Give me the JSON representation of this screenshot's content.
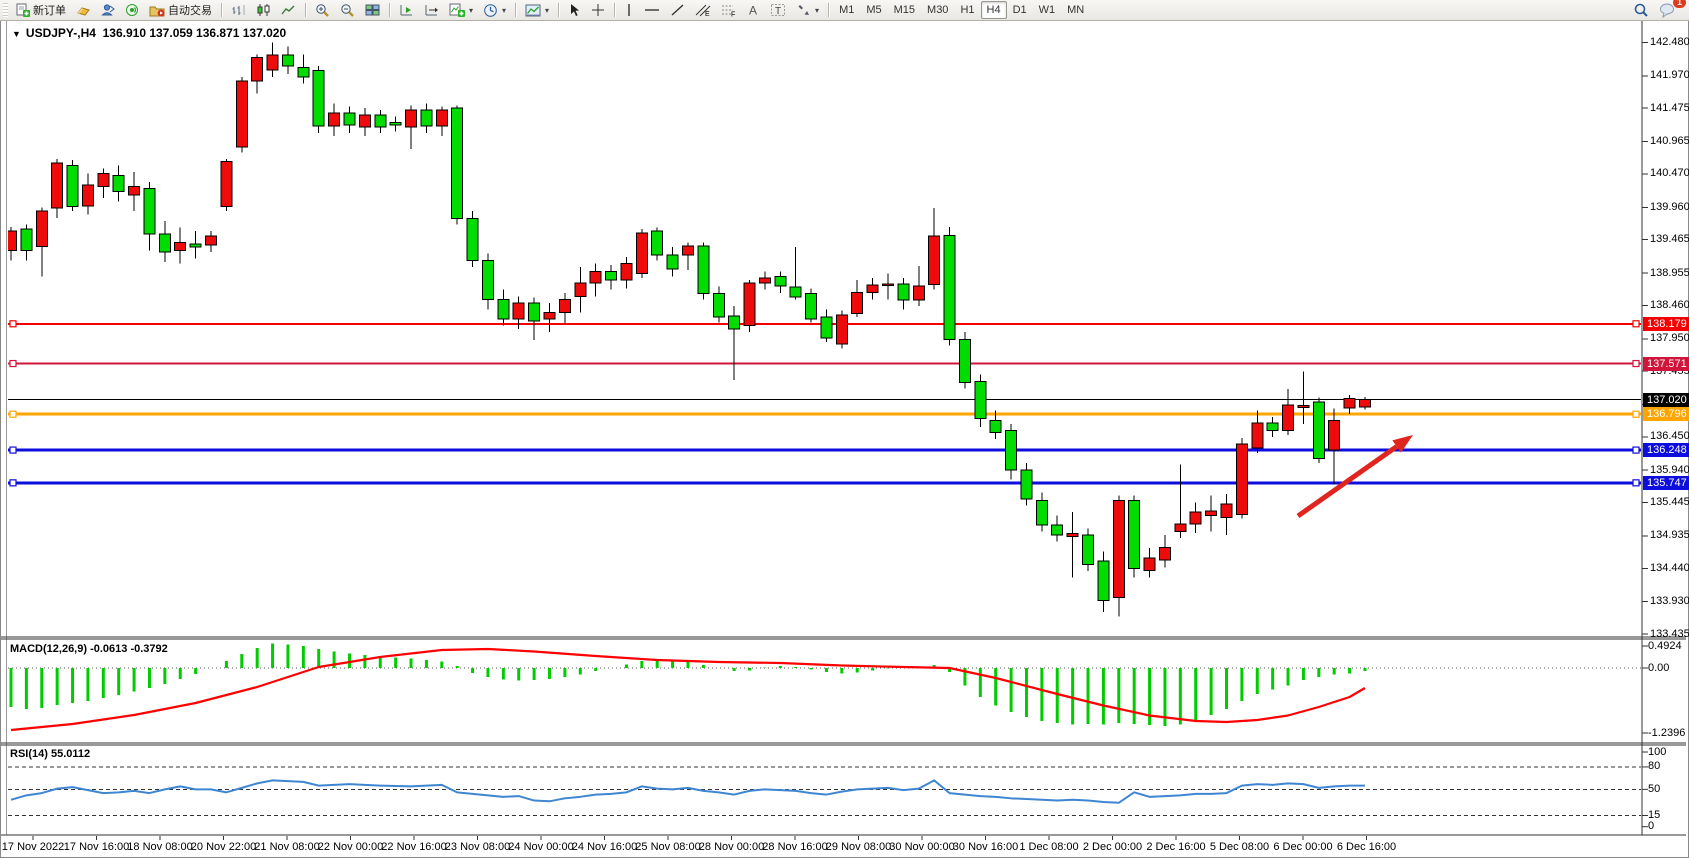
{
  "toolbar": {
    "new_order_label": "新订单",
    "auto_trading_label": "自动交易",
    "timeframes": [
      "M1",
      "M5",
      "M15",
      "M30",
      "H1",
      "H4",
      "D1",
      "W1",
      "MN"
    ],
    "active_timeframe": "H4",
    "notification_count": "1"
  },
  "chart": {
    "symbol_period": "USDJPY-,H4",
    "ohlc_text": "136.910 137.059 136.871 137.020",
    "dropdown_glyph": "▼"
  },
  "chart_data": {
    "type": "candlestick-with-indicators",
    "title": "USDJPY-,H4 136.910 137.059 136.871 137.020",
    "up_color": "#ee0b0b",
    "down_color": "#00dc00",
    "price_axis_ticks": [
      "142.480",
      "141.970",
      "141.475",
      "140.965",
      "140.470",
      "139.960",
      "139.465",
      "138.955",
      "138.460",
      "137.950",
      "137.455",
      "136.945",
      "136.450",
      "135.940",
      "135.445",
      "134.935",
      "134.440",
      "133.930",
      "133.435"
    ],
    "price_axis_range": [
      133.435,
      142.48
    ],
    "time_labels": [
      "17 Nov 2022",
      "17 Nov 16:00",
      "18 Nov 08:00",
      "20 Nov 22:00",
      "21 Nov 08:00",
      "22 Nov 00:00",
      "22 Nov 16:00",
      "23 Nov 08:00",
      "24 Nov 00:00",
      "24 Nov 16:00",
      "25 Nov 08:00",
      "28 Nov 00:00",
      "28 Nov 16:00",
      "29 Nov 08:00",
      "30 Nov 00:00",
      "30 Nov 16:00",
      "1 Dec 08:00",
      "2 Dec 00:00",
      "2 Dec 16:00",
      "5 Dec 08:00",
      "6 Dec 00:00",
      "6 Dec 16:00"
    ],
    "candles_ohlc": [
      [
        139.3,
        139.66,
        139.15,
        139.6
      ],
      [
        139.63,
        139.7,
        139.15,
        139.3
      ],
      [
        139.36,
        139.96,
        138.9,
        139.9
      ],
      [
        139.95,
        140.7,
        139.8,
        140.64
      ],
      [
        140.6,
        140.68,
        139.9,
        139.97
      ],
      [
        139.98,
        140.48,
        139.85,
        140.3
      ],
      [
        140.28,
        140.55,
        140.1,
        140.48
      ],
      [
        140.45,
        140.6,
        140.05,
        140.2
      ],
      [
        140.15,
        140.5,
        139.9,
        140.28
      ],
      [
        140.25,
        140.35,
        139.3,
        139.55
      ],
      [
        139.55,
        139.75,
        139.12,
        139.28
      ],
      [
        139.3,
        139.65,
        139.1,
        139.42
      ],
      [
        139.4,
        139.6,
        139.18,
        139.35
      ],
      [
        139.38,
        139.6,
        139.28,
        139.52
      ],
      [
        139.97,
        140.7,
        139.9,
        140.66
      ],
      [
        140.88,
        141.95,
        140.8,
        141.89
      ],
      [
        141.89,
        142.3,
        141.7,
        142.25
      ],
      [
        142.06,
        142.48,
        141.95,
        142.29
      ],
      [
        142.29,
        142.42,
        142.0,
        142.12
      ],
      [
        142.1,
        142.3,
        141.85,
        141.95
      ],
      [
        142.05,
        142.12,
        141.1,
        141.2
      ],
      [
        141.2,
        141.55,
        141.05,
        141.4
      ],
      [
        141.4,
        141.5,
        141.1,
        141.22
      ],
      [
        141.19,
        141.48,
        141.05,
        141.37
      ],
      [
        141.37,
        141.45,
        141.1,
        141.19
      ],
      [
        141.26,
        141.35,
        141.12,
        141.22
      ],
      [
        141.19,
        141.52,
        140.85,
        141.45
      ],
      [
        141.45,
        141.55,
        141.1,
        141.2
      ],
      [
        141.2,
        141.5,
        141.05,
        141.45
      ],
      [
        141.48,
        141.52,
        139.7,
        139.79
      ],
      [
        139.79,
        139.9,
        139.05,
        139.15
      ],
      [
        139.15,
        139.25,
        138.4,
        138.55
      ],
      [
        138.55,
        138.7,
        138.15,
        138.25
      ],
      [
        138.25,
        138.6,
        138.1,
        138.5
      ],
      [
        138.5,
        138.58,
        137.93,
        138.22
      ],
      [
        138.25,
        138.5,
        138.05,
        138.35
      ],
      [
        138.35,
        138.65,
        138.18,
        138.55
      ],
      [
        138.6,
        139.05,
        138.35,
        138.8
      ],
      [
        138.8,
        139.1,
        138.6,
        138.98
      ],
      [
        138.98,
        139.08,
        138.7,
        138.85
      ],
      [
        138.85,
        139.2,
        138.72,
        139.1
      ],
      [
        138.95,
        139.63,
        138.88,
        139.57
      ],
      [
        139.6,
        139.65,
        139.15,
        139.23
      ],
      [
        139.23,
        139.35,
        138.9,
        139.02
      ],
      [
        139.23,
        139.42,
        139.0,
        139.37
      ],
      [
        139.37,
        139.42,
        138.55,
        138.64
      ],
      [
        138.64,
        138.75,
        138.2,
        138.28
      ],
      [
        138.3,
        138.45,
        137.32,
        138.1
      ],
      [
        138.15,
        138.85,
        138.05,
        138.8
      ],
      [
        138.8,
        138.98,
        138.7,
        138.88
      ],
      [
        138.9,
        138.98,
        138.65,
        138.76
      ],
      [
        138.74,
        139.35,
        138.55,
        138.59
      ],
      [
        138.64,
        138.72,
        138.2,
        138.25
      ],
      [
        138.28,
        138.4,
        137.9,
        137.96
      ],
      [
        137.87,
        138.38,
        137.8,
        138.31
      ],
      [
        138.34,
        138.85,
        138.28,
        138.66
      ],
      [
        138.66,
        138.88,
        138.55,
        138.77
      ],
      [
        138.78,
        138.95,
        138.55,
        138.79
      ],
      [
        138.79,
        138.88,
        138.4,
        138.54
      ],
      [
        138.54,
        139.06,
        138.45,
        138.76
      ],
      [
        138.78,
        139.95,
        138.7,
        139.52
      ],
      [
        139.53,
        139.66,
        137.85,
        137.94
      ],
      [
        137.94,
        138.05,
        137.19,
        137.28
      ],
      [
        137.3,
        137.4,
        136.6,
        136.73
      ],
      [
        136.7,
        136.85,
        136.42,
        136.52
      ],
      [
        136.55,
        136.65,
        135.8,
        135.94
      ],
      [
        135.94,
        136.05,
        135.4,
        135.5
      ],
      [
        135.48,
        135.6,
        135.0,
        135.1
      ],
      [
        135.1,
        135.25,
        134.85,
        134.95
      ],
      [
        134.93,
        135.3,
        134.3,
        134.97
      ],
      [
        134.95,
        135.05,
        134.4,
        134.5
      ],
      [
        134.55,
        134.7,
        133.77,
        133.95
      ],
      [
        133.99,
        135.55,
        133.7,
        135.48
      ],
      [
        135.48,
        135.55,
        134.3,
        134.44
      ],
      [
        134.41,
        134.75,
        134.3,
        134.6
      ],
      [
        134.57,
        134.95,
        134.45,
        134.76
      ],
      [
        135.0,
        136.03,
        134.9,
        135.12
      ],
      [
        135.12,
        135.45,
        134.98,
        135.3
      ],
      [
        135.25,
        135.55,
        135.0,
        135.32
      ],
      [
        135.22,
        135.58,
        134.95,
        135.42
      ],
      [
        135.26,
        136.43,
        135.2,
        136.34
      ],
      [
        136.28,
        136.85,
        136.2,
        136.66
      ],
      [
        136.66,
        136.75,
        136.45,
        136.55
      ],
      [
        136.55,
        137.18,
        136.48,
        136.94
      ],
      [
        136.9,
        137.45,
        136.65,
        136.93
      ],
      [
        136.98,
        137.05,
        136.05,
        136.12
      ],
      [
        136.25,
        136.88,
        135.72,
        136.7
      ],
      [
        136.89,
        137.09,
        136.8,
        137.04
      ],
      [
        136.91,
        137.059,
        136.871,
        137.02
      ]
    ],
    "horizontal_lines": [
      {
        "price": 138.179,
        "label": "138.179",
        "color": "#f40000",
        "width": 2,
        "markers": true
      },
      {
        "price": 137.571,
        "label": "137.571",
        "color": "#d0143c",
        "width": 2,
        "markers": true
      },
      {
        "price": 137.02,
        "label": "137.020",
        "color": "#000000",
        "width": 1,
        "markers": false
      },
      {
        "price": 136.796,
        "label": "136.796",
        "color": "#ffa500",
        "width": 3,
        "markers": true
      },
      {
        "price": 136.248,
        "label": "136.248",
        "color": "#0d0ddd",
        "width": 3,
        "markers": true
      },
      {
        "price": 135.747,
        "label": "135.747",
        "color": "#0d0ddd",
        "width": 3,
        "markers": true
      }
    ],
    "arrow_annotation": {
      "from": [
        1298,
        516
      ],
      "to": [
        1413,
        435
      ],
      "color": "#e0251f",
      "width": 5
    },
    "macd": {
      "label": "MACD(12,26,9) -0.0613 -0.3792",
      "params": "12,26,9",
      "current_macd": "-0.0613",
      "current_signal": "-0.3792",
      "axis_labels": [
        "0.4924",
        "0.00",
        "-1.2396"
      ],
      "histogram_color": "#00cc00",
      "signal_color": "#ff0000",
      "histogram": [
        -0.78,
        -0.82,
        -0.8,
        -0.74,
        -0.7,
        -0.66,
        -0.6,
        -0.54,
        -0.47,
        -0.4,
        -0.32,
        -0.22,
        -0.12,
        0.0,
        0.14,
        0.28,
        0.4,
        0.49,
        0.47,
        0.44,
        0.38,
        0.33,
        0.29,
        0.26,
        0.23,
        0.21,
        0.19,
        0.16,
        0.13,
        0.04,
        -0.1,
        -0.18,
        -0.23,
        -0.25,
        -0.24,
        -0.22,
        -0.18,
        -0.13,
        -0.06,
        0.0,
        0.07,
        0.14,
        0.18,
        0.16,
        0.12,
        0.06,
        0.0,
        -0.06,
        -0.05,
        0.01,
        0.04,
        0.02,
        -0.03,
        -0.08,
        -0.11,
        -0.09,
        -0.05,
        -0.01,
        0.02,
        0.01,
        0.06,
        -0.08,
        -0.35,
        -0.58,
        -0.75,
        -0.88,
        -0.98,
        -1.06,
        -1.1,
        -1.13,
        -1.12,
        -1.13,
        -1.1,
        -1.12,
        -1.14,
        -1.16,
        -1.13,
        -1.06,
        -0.94,
        -0.82,
        -0.66,
        -0.52,
        -0.43,
        -0.35,
        -0.24,
        -0.18,
        -0.13,
        -0.11,
        -0.06
      ],
      "signal_points": [
        [
          0,
          -1.24
        ],
        [
          4,
          -1.12
        ],
        [
          8,
          -0.94
        ],
        [
          12,
          -0.7
        ],
        [
          16,
          -0.38
        ],
        [
          20,
          0.02
        ],
        [
          24,
          0.22
        ],
        [
          28,
          0.36
        ],
        [
          31,
          0.38
        ],
        [
          34,
          0.33
        ],
        [
          38,
          0.24
        ],
        [
          42,
          0.16
        ],
        [
          46,
          0.12
        ],
        [
          50,
          0.1
        ],
        [
          54,
          0.05
        ],
        [
          58,
          0.02
        ],
        [
          61,
          0.0
        ],
        [
          64,
          -0.2
        ],
        [
          68,
          -0.52
        ],
        [
          71,
          -0.75
        ],
        [
          74,
          -0.95
        ],
        [
          77,
          -1.06
        ],
        [
          79,
          -1.08
        ],
        [
          81,
          -1.04
        ],
        [
          83,
          -0.95
        ],
        [
          85,
          -0.78
        ],
        [
          87,
          -0.58
        ],
        [
          88,
          -0.4
        ]
      ]
    },
    "rsi": {
      "label": "RSI(14) 55.0112",
      "period": "14",
      "current": "55.0112",
      "axis_labels": [
        "100",
        "80",
        "50",
        "15",
        "0"
      ],
      "levels": [
        80,
        50,
        15
      ],
      "line_color": "#3e86d2",
      "points": [
        [
          0,
          36
        ],
        [
          1,
          42
        ],
        [
          2,
          45
        ],
        [
          3,
          51
        ],
        [
          4,
          53
        ],
        [
          5,
          49
        ],
        [
          6,
          45
        ],
        [
          7,
          46
        ],
        [
          8,
          48
        ],
        [
          9,
          45
        ],
        [
          10,
          50
        ],
        [
          11,
          54
        ],
        [
          12,
          50
        ],
        [
          13,
          50
        ],
        [
          14,
          46
        ],
        [
          15,
          52
        ],
        [
          16,
          58
        ],
        [
          17,
          62
        ],
        [
          18,
          61
        ],
        [
          19,
          60
        ],
        [
          20,
          55
        ],
        [
          22,
          57
        ],
        [
          24,
          55
        ],
        [
          26,
          54
        ],
        [
          28,
          56
        ],
        [
          29,
          46
        ],
        [
          30,
          44
        ],
        [
          31,
          42
        ],
        [
          32,
          40
        ],
        [
          33,
          41
        ],
        [
          34,
          35
        ],
        [
          35,
          34
        ],
        [
          36,
          38
        ],
        [
          37,
          40
        ],
        [
          38,
          43
        ],
        [
          39,
          44
        ],
        [
          40,
          46
        ],
        [
          41,
          54
        ],
        [
          42,
          51
        ],
        [
          43,
          50
        ],
        [
          44,
          52
        ],
        [
          45,
          48
        ],
        [
          46,
          46
        ],
        [
          47,
          43
        ],
        [
          48,
          48
        ],
        [
          49,
          50
        ],
        [
          50,
          49
        ],
        [
          51,
          48
        ],
        [
          52,
          45
        ],
        [
          53,
          43
        ],
        [
          54,
          47
        ],
        [
          55,
          50
        ],
        [
          56,
          51
        ],
        [
          57,
          52
        ],
        [
          58,
          49
        ],
        [
          59,
          51
        ],
        [
          60,
          62
        ],
        [
          61,
          45
        ],
        [
          62,
          43
        ],
        [
          63,
          41
        ],
        [
          64,
          40
        ],
        [
          65,
          38
        ],
        [
          66,
          37
        ],
        [
          67,
          36
        ],
        [
          68,
          35
        ],
        [
          69,
          36
        ],
        [
          70,
          35
        ],
        [
          71,
          33
        ],
        [
          72,
          32
        ],
        [
          73,
          46
        ],
        [
          74,
          40
        ],
        [
          75,
          41
        ],
        [
          76,
          42
        ],
        [
          77,
          44
        ],
        [
          78,
          44
        ],
        [
          79,
          45
        ],
        [
          80,
          55
        ],
        [
          81,
          57
        ],
        [
          82,
          56
        ],
        [
          83,
          58
        ],
        [
          84,
          57
        ],
        [
          85,
          52
        ],
        [
          86,
          54
        ],
        [
          87,
          55
        ],
        [
          88,
          55
        ]
      ]
    }
  }
}
